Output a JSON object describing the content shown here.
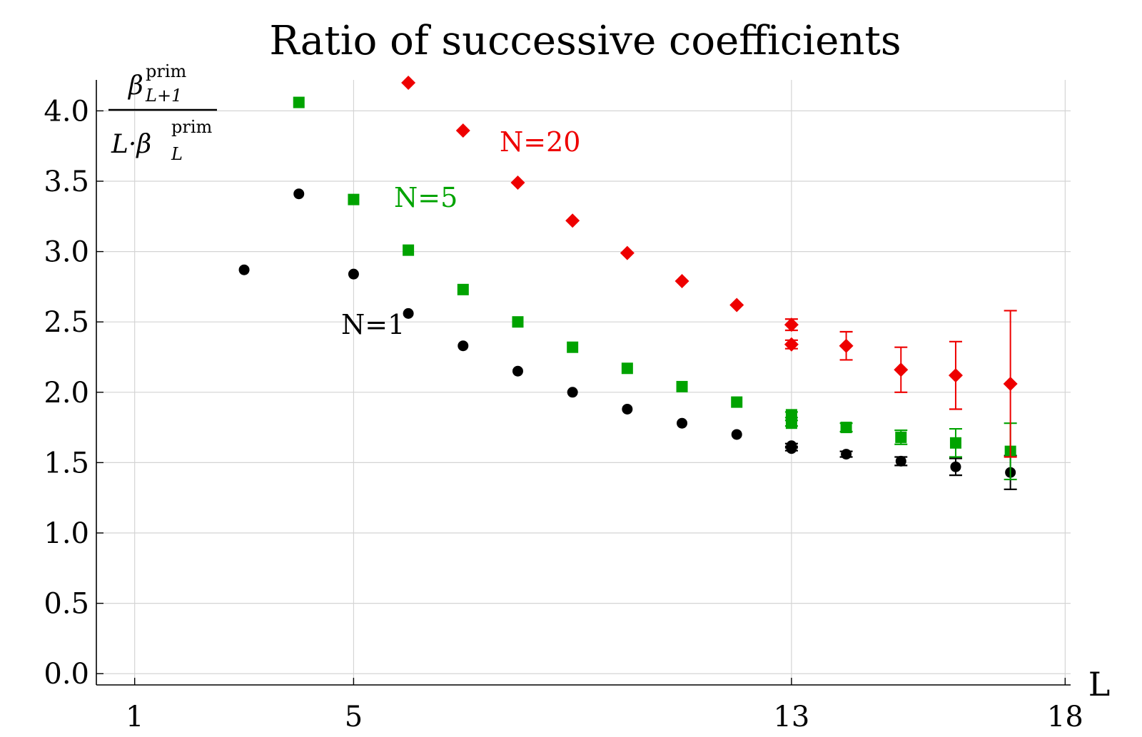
{
  "chart_data": {
    "type": "scatter",
    "title": "Ratio of successive coefficients",
    "xlabel": "L",
    "ylabel": {
      "numerator_symbol": "β",
      "numerator_sub": "L+1",
      "numerator_sup": "prim",
      "denominator_prefix": "L·β",
      "denominator_sub": "L",
      "denominator_sup": "prim"
    },
    "xlim": [
      0.3,
      18.1
    ],
    "ylim": [
      -0.08,
      4.22
    ],
    "xticks": [
      1,
      5,
      13,
      18
    ],
    "yticks": [
      0.0,
      0.5,
      1.0,
      1.5,
      2.0,
      2.5,
      3.0,
      3.5,
      4.0
    ],
    "ytick_labels": [
      "0.0",
      "0.5",
      "1.0",
      "1.5",
      "2.0",
      "2.5",
      "3.0",
      "3.5",
      "4.0"
    ],
    "grid": true,
    "annotations": [
      {
        "text": "N=1",
        "series": "N=1"
      },
      {
        "text": "N=5",
        "series": "N=5"
      },
      {
        "text": "N=20",
        "series": "N=20"
      }
    ],
    "series": [
      {
        "name": "N=1",
        "color": "#000000",
        "marker": "circle",
        "points": [
          {
            "x": 3,
            "y": 2.87,
            "err": 0
          },
          {
            "x": 4,
            "y": 3.41,
            "err": 0
          },
          {
            "x": 5,
            "y": 2.84,
            "err": 0
          },
          {
            "x": 6,
            "y": 2.56,
            "err": 0
          },
          {
            "x": 7,
            "y": 2.33,
            "err": 0
          },
          {
            "x": 8,
            "y": 2.15,
            "err": 0
          },
          {
            "x": 9,
            "y": 2.0,
            "err": 0
          },
          {
            "x": 10,
            "y": 1.88,
            "err": 0
          },
          {
            "x": 11,
            "y": 1.78,
            "err": 0
          },
          {
            "x": 12,
            "y": 1.7,
            "err": 0
          },
          {
            "x": 13,
            "y": 1.62,
            "err": 0.015
          },
          {
            "x": 13,
            "y": 1.6,
            "err": 0.015
          },
          {
            "x": 14,
            "y": 1.56,
            "err": 0.02
          },
          {
            "x": 15,
            "y": 1.51,
            "err": 0.03
          },
          {
            "x": 16,
            "y": 1.47,
            "err": 0.06
          },
          {
            "x": 17,
            "y": 1.43,
            "err": 0.12
          }
        ]
      },
      {
        "name": "N=5",
        "color": "#00a300",
        "marker": "square",
        "points": [
          {
            "x": 4,
            "y": 4.06,
            "err": 0
          },
          {
            "x": 5,
            "y": 3.37,
            "err": 0
          },
          {
            "x": 6,
            "y": 3.01,
            "err": 0
          },
          {
            "x": 7,
            "y": 2.73,
            "err": 0
          },
          {
            "x": 8,
            "y": 2.5,
            "err": 0
          },
          {
            "x": 9,
            "y": 2.32,
            "err": 0
          },
          {
            "x": 10,
            "y": 2.17,
            "err": 0
          },
          {
            "x": 11,
            "y": 2.04,
            "err": 0
          },
          {
            "x": 12,
            "y": 1.93,
            "err": 0
          },
          {
            "x": 13,
            "y": 1.84,
            "err": 0.02
          },
          {
            "x": 13,
            "y": 1.78,
            "err": 0.02
          },
          {
            "x": 14,
            "y": 1.75,
            "err": 0.03
          },
          {
            "x": 15,
            "y": 1.68,
            "err": 0.05
          },
          {
            "x": 16,
            "y": 1.64,
            "err": 0.1
          },
          {
            "x": 17,
            "y": 1.58,
            "err": 0.2
          }
        ]
      },
      {
        "name": "N=20",
        "color": "#ee0000",
        "marker": "diamond",
        "points": [
          {
            "x": 6,
            "y": 4.2,
            "err": 0
          },
          {
            "x": 7,
            "y": 3.86,
            "err": 0
          },
          {
            "x": 8,
            "y": 3.49,
            "err": 0
          },
          {
            "x": 9,
            "y": 3.22,
            "err": 0
          },
          {
            "x": 10,
            "y": 2.99,
            "err": 0
          },
          {
            "x": 11,
            "y": 2.79,
            "err": 0
          },
          {
            "x": 12,
            "y": 2.62,
            "err": 0
          },
          {
            "x": 13,
            "y": 2.48,
            "err": 0.04
          },
          {
            "x": 13,
            "y": 2.34,
            "err": 0.03
          },
          {
            "x": 14,
            "y": 2.33,
            "err": 0.1
          },
          {
            "x": 15,
            "y": 2.16,
            "err": 0.16
          },
          {
            "x": 16,
            "y": 2.12,
            "err": 0.24
          },
          {
            "x": 17,
            "y": 2.06,
            "err": 0.52
          }
        ]
      }
    ]
  }
}
